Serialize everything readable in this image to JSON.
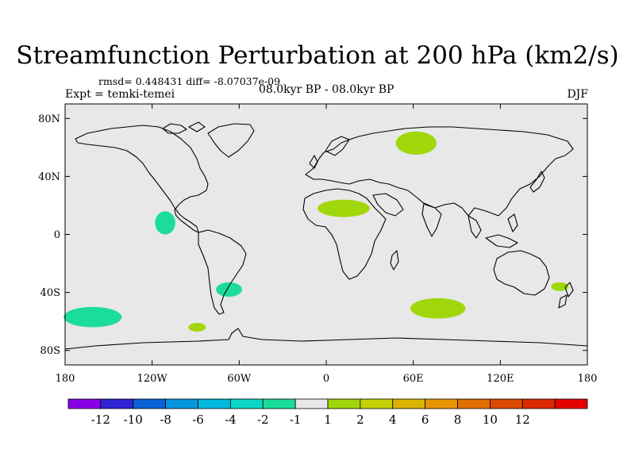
{
  "title": "Streamfunction Perturbation at 200 hPa (km2/s)",
  "stats": "rmsd= 0.448431  diff= -8.07037e-09",
  "experiment": "Expt = temki-temei",
  "period": "08.0kyr BP - 08.0kyr BP",
  "season": "DJF",
  "map": {
    "background": "#e8e8e8",
    "lat_ticks": [
      {
        "value": 80,
        "label": "80N"
      },
      {
        "value": 40,
        "label": "40N"
      },
      {
        "value": 0,
        "label": "0"
      },
      {
        "value": -40,
        "label": "40S"
      },
      {
        "value": -80,
        "label": "80S"
      }
    ],
    "lon_ticks": [
      {
        "value": -180,
        "label": "180"
      },
      {
        "value": -120,
        "label": "120W"
      },
      {
        "value": -60,
        "label": "60W"
      },
      {
        "value": 0,
        "label": "0"
      },
      {
        "value": 60,
        "label": "60E"
      },
      {
        "value": 120,
        "label": "120E"
      },
      {
        "value": 180,
        "label": "180"
      }
    ],
    "anomalies": [
      {
        "name": "siberia-positive",
        "lon": 62,
        "lat": 63,
        "rlon": 14,
        "rlat": 8,
        "color": "#a0d70a"
      },
      {
        "name": "sahara-positive",
        "lon": 12,
        "lat": 18,
        "rlon": 18,
        "rlat": 6,
        "color": "#a0d70a"
      },
      {
        "name": "eastern-pacific-negative",
        "lon": -111,
        "lat": 8,
        "rlon": 7,
        "rlat": 8,
        "color": "#1cdc9c"
      },
      {
        "name": "argentina-negative",
        "lon": -67,
        "lat": -38,
        "rlon": 9,
        "rlat": 5,
        "color": "#1cdc9c"
      },
      {
        "name": "south-pacific-negative",
        "lon": -161,
        "lat": -57,
        "rlon": 20,
        "rlat": 7,
        "color": "#1cdc9c"
      },
      {
        "name": "south-indian-positive",
        "lon": 77,
        "lat": -51,
        "rlon": 19,
        "rlat": 7,
        "color": "#a0d70a"
      },
      {
        "name": "tasman-positive",
        "lon": 161,
        "lat": -36,
        "rlon": 6,
        "rlat": 3,
        "color": "#a0d70a"
      },
      {
        "name": "southern-ocean-positive",
        "lon": -89,
        "lat": -64,
        "rlon": 6,
        "rlat": 3,
        "color": "#a0d70a"
      }
    ]
  },
  "colorbar": {
    "colors": [
      "#8a00e6",
      "#3223d5",
      "#0a63d6",
      "#0596e0",
      "#00b8dc",
      "#0ad6c8",
      "#1cdc9c",
      "#e8e8e8",
      "#a0d70a",
      "#c4d004",
      "#dcb300",
      "#e69400",
      "#e07000",
      "#dc4a00",
      "#dc2800",
      "#e60000"
    ],
    "labels": [
      "-12",
      "-10",
      "-8",
      "-6",
      "-4",
      "-2",
      "-1",
      "1",
      "2",
      "4",
      "6",
      "8",
      "10",
      "12"
    ]
  }
}
